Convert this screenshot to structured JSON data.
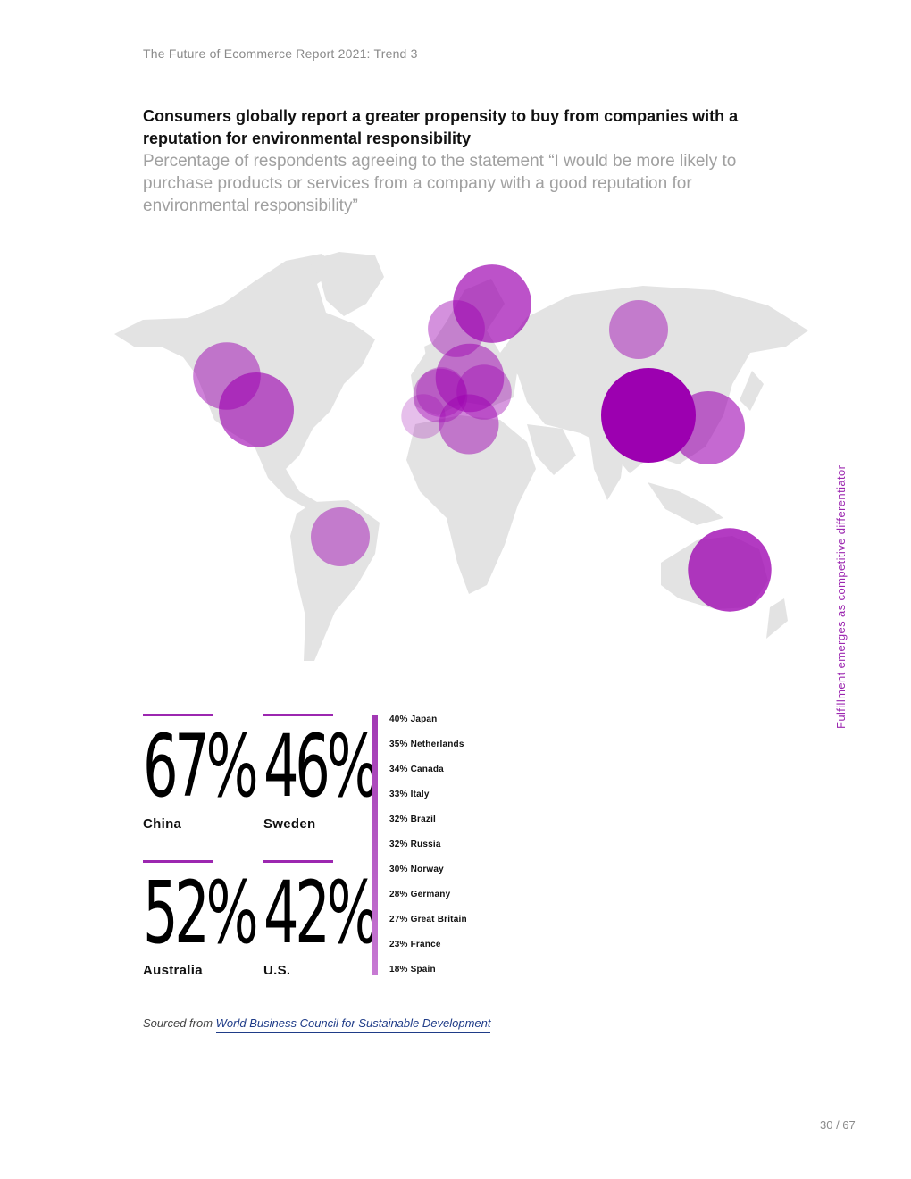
{
  "header": {
    "running_title": "The Future of Ecommerce Report 2021: Trend 3"
  },
  "chart_data": {
    "type": "bubble-map",
    "title": "Consumers globally report a greater propensity to buy from companies with a reputation for environmental responsibility",
    "subtitle": "Percentage of respondents agreeing to the statement “I would be more likely to purchase products or services from a company with a good reputation for environmental responsibility”",
    "unit": "%",
    "series": [
      {
        "country": "China",
        "value": 67
      },
      {
        "country": "Australia",
        "value": 52
      },
      {
        "country": "Sweden",
        "value": 46
      },
      {
        "country": "U.S.",
        "value": 42
      },
      {
        "country": "Japan",
        "value": 40
      },
      {
        "country": "Netherlands",
        "value": 35
      },
      {
        "country": "Canada",
        "value": 34
      },
      {
        "country": "Italy",
        "value": 33
      },
      {
        "country": "Brazil",
        "value": 32
      },
      {
        "country": "Russia",
        "value": 32
      },
      {
        "country": "Norway",
        "value": 30
      },
      {
        "country": "Germany",
        "value": 28
      },
      {
        "country": "Great Britain",
        "value": 27
      },
      {
        "country": "France",
        "value": 23
      },
      {
        "country": "Spain",
        "value": 18
      }
    ],
    "colors": {
      "bubble": "#9c00b0",
      "land": "#e3e3e3",
      "accent": "#9c27b0"
    }
  },
  "highlights": [
    {
      "value": "67%",
      "country": "China"
    },
    {
      "value": "46%",
      "country": "Sweden"
    },
    {
      "value": "52%",
      "country": "Australia"
    },
    {
      "value": "42%",
      "country": "U.S."
    }
  ],
  "list_items": [
    "40% Japan",
    "35% Netherlands",
    "34% Canada",
    "33% Italy",
    "32% Brazil",
    "32% Russia",
    "30% Norway",
    "28% Germany",
    "27% Great Britain",
    "23% France",
    "18% Spain"
  ],
  "source": {
    "prefix": "Sourced from ",
    "link_text": "World Business Council for Sustainable Development"
  },
  "side_label": "Fulfillment emerges as competitive differentiator",
  "page_number": "30 / 67"
}
